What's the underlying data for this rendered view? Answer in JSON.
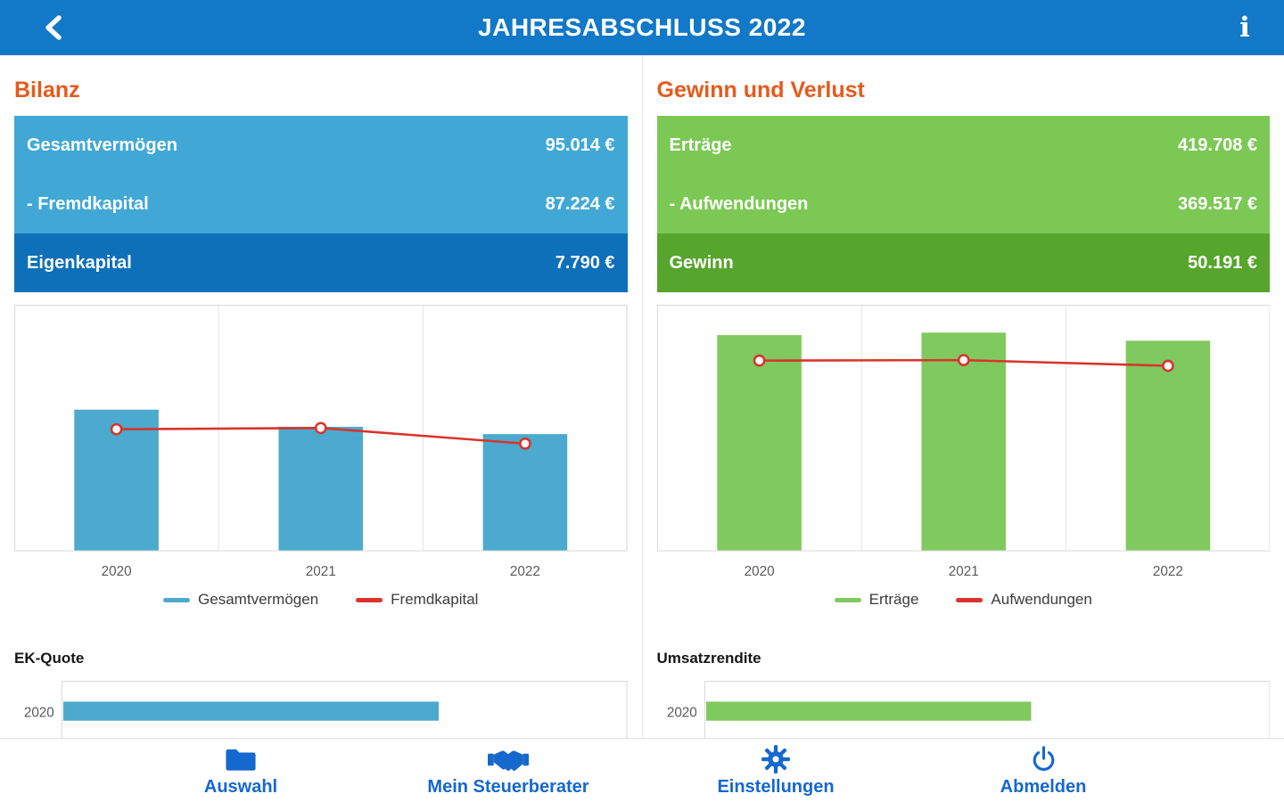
{
  "header": {
    "title": "JAHRESABSCHLUSS 2022"
  },
  "colors": {
    "topbar": "#1278C8",
    "blue_light": "#41A8D6",
    "blue_dark": "#0E70B9",
    "green_light": "#7CC854",
    "green_dark": "#56A52D",
    "orange_heading": "#E55A1C",
    "chart_blue": "#4BAACD",
    "chart_green": "#80C95E",
    "line_red": "#D8342C",
    "nav_blue": "#1568CD"
  },
  "bilanz": {
    "title": "Bilanz",
    "rows": [
      {
        "label": "Gesamtvermögen",
        "value": "95.014 €"
      },
      {
        "label": "- Fremdkapital",
        "value": "87.224 €"
      },
      {
        "label": "Eigenkapital",
        "value": "7.790 €"
      }
    ],
    "mini_chart_title": "EK-Quote"
  },
  "guv": {
    "title": "Gewinn und Verlust",
    "rows": [
      {
        "label": "Erträge",
        "value": "419.708 €"
      },
      {
        "label": "- Aufwendungen",
        "value": "369.517 €"
      },
      {
        "label": "Gewinn",
        "value": "50.191 €"
      }
    ],
    "mini_chart_title": "Umsatzrendite"
  },
  "chart_data": [
    {
      "id": "bilanz_chart",
      "type": "bar",
      "subtype": "bar+line combo",
      "categories": [
        "2020",
        "2021",
        "2022"
      ],
      "series": [
        {
          "name": "Gesamtvermögen",
          "type": "bar",
          "color": "#4BAACD",
          "values": [
            115000,
            101000,
            95014
          ]
        },
        {
          "name": "Fremdkapital",
          "type": "line",
          "color": "#D8342C",
          "values": [
            99000,
            100000,
            87224
          ]
        }
      ],
      "ylim": [
        0,
        200000
      ],
      "grid": "vertical-only",
      "legend_position": "bottom",
      "note": "2022 values from summary table; 2020/2021 estimated from bar/marker heights"
    },
    {
      "id": "guv_chart",
      "type": "bar",
      "subtype": "bar+line combo",
      "categories": [
        "2020",
        "2021",
        "2022"
      ],
      "series": [
        {
          "name": "Erträge",
          "type": "bar",
          "color": "#80C95E",
          "values": [
            431000,
            436000,
            419708
          ]
        },
        {
          "name": "Aufwendungen",
          "type": "line",
          "color": "#D8342C",
          "values": [
            380000,
            381000,
            369517
          ]
        }
      ],
      "ylim": [
        0,
        490000
      ],
      "grid": "vertical-only",
      "legend_position": "bottom",
      "note": "2022 values from summary table; 2020/2021 estimated from bar/marker heights"
    },
    {
      "id": "ek_quote_chart",
      "type": "bar",
      "orientation": "horizontal",
      "title": "EK-Quote",
      "categories": [
        "2020"
      ],
      "values": [
        67
      ],
      "xlim": [
        0,
        100
      ],
      "color": "#4BAACD",
      "note": "chart clipped by bottom navigation; bar length estimated as % of plot width"
    },
    {
      "id": "umsatzrendite_chart",
      "type": "bar",
      "orientation": "horizontal",
      "title": "Umsatzrendite",
      "categories": [
        "2020"
      ],
      "values": [
        58
      ],
      "xlim": [
        0,
        100
      ],
      "color": "#80C95E",
      "note": "chart clipped by bottom navigation; bar length estimated as % of plot width"
    }
  ],
  "bottom_nav": {
    "items": [
      {
        "label": "Auswahl",
        "icon": "folder-icon"
      },
      {
        "label": "Mein Steuerberater",
        "icon": "handshake-icon"
      },
      {
        "label": "Einstellungen",
        "icon": "gear-icon"
      },
      {
        "label": "Abmelden",
        "icon": "power-icon"
      }
    ]
  }
}
